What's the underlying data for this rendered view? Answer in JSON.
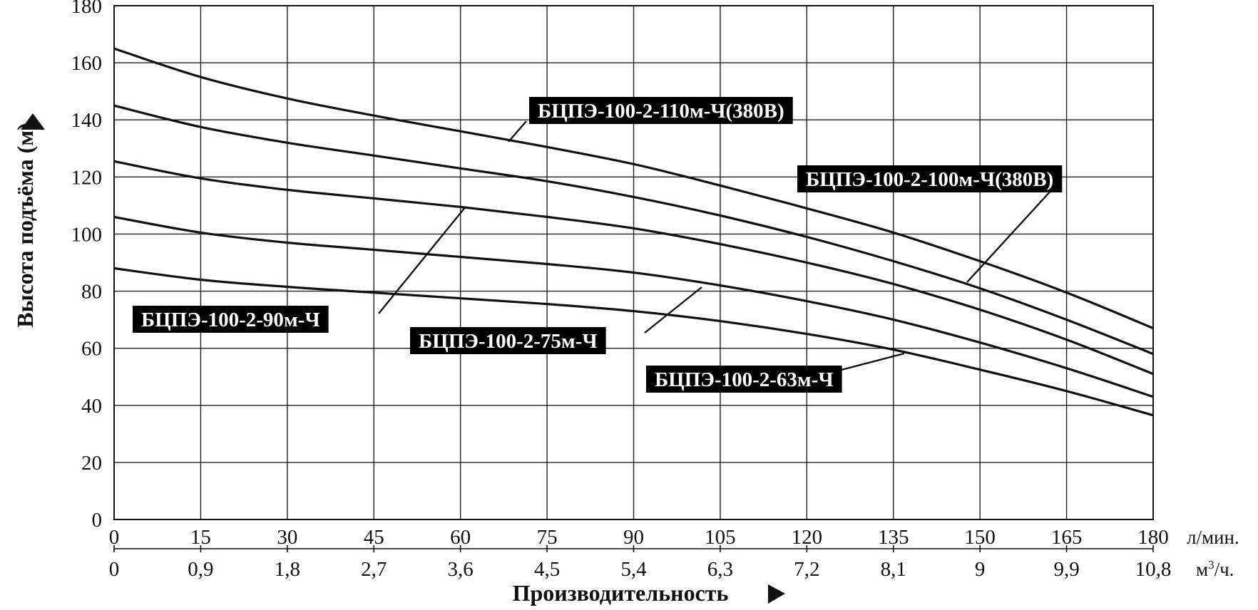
{
  "chart_data": {
    "type": "line",
    "title": "",
    "ylabel": "Высота подъёма (м)",
    "xlabel": "Производительность",
    "ylim": [
      0,
      180
    ],
    "xlim": [
      0,
      180
    ],
    "grid": true,
    "x_ticks_primary": [
      "0",
      "15",
      "30",
      "45",
      "60",
      "75",
      "90",
      "105",
      "120",
      "135",
      "150",
      "165",
      "180"
    ],
    "x_unit_primary": "л/мин.",
    "x_ticks_secondary": [
      "0",
      "0,9",
      "1,8",
      "2,7",
      "3,6",
      "4,5",
      "5,4",
      "6,3",
      "7,2",
      "8,1",
      "9",
      "9,9",
      "10,8"
    ],
    "x_unit_secondary": "м³/ч.",
    "y_ticks": [
      "0",
      "20",
      "40",
      "60",
      "80",
      "100",
      "120",
      "140",
      "160",
      "180"
    ],
    "x": [
      0,
      15,
      30,
      45,
      60,
      75,
      90,
      105,
      120,
      135,
      150,
      165,
      180
    ],
    "series": [
      {
        "name": "БЦПЭ-100-2-110м-Ч(380В)",
        "values": [
          165,
          155,
          147.5,
          141.5,
          136,
          130.5,
          124.5,
          117,
          109,
          100.5,
          90.5,
          79.5,
          67
        ]
      },
      {
        "name": "БЦПЭ-100-2-100м-Ч(380В)",
        "values": [
          145,
          137.5,
          132,
          127.5,
          123,
          118.5,
          113,
          106.5,
          99,
          90.5,
          81,
          70,
          58
        ]
      },
      {
        "name": "БЦПЭ-100-2-90м-Ч",
        "values": [
          125.5,
          119.5,
          115.5,
          112.5,
          109.5,
          106,
          102,
          96.5,
          90,
          82.5,
          73.5,
          63,
          51
        ]
      },
      {
        "name": "БЦПЭ-100-2-75м-Ч",
        "values": [
          106,
          100.5,
          97,
          94.5,
          92,
          89.5,
          86.5,
          82,
          76.5,
          70,
          62,
          53,
          43
        ]
      },
      {
        "name": "БЦПЭ-100-2-63м-Ч",
        "values": [
          88,
          84,
          81.5,
          79.5,
          77.5,
          75.5,
          73,
          69.5,
          65,
          59.5,
          52.5,
          45,
          36.5
        ]
      }
    ]
  }
}
